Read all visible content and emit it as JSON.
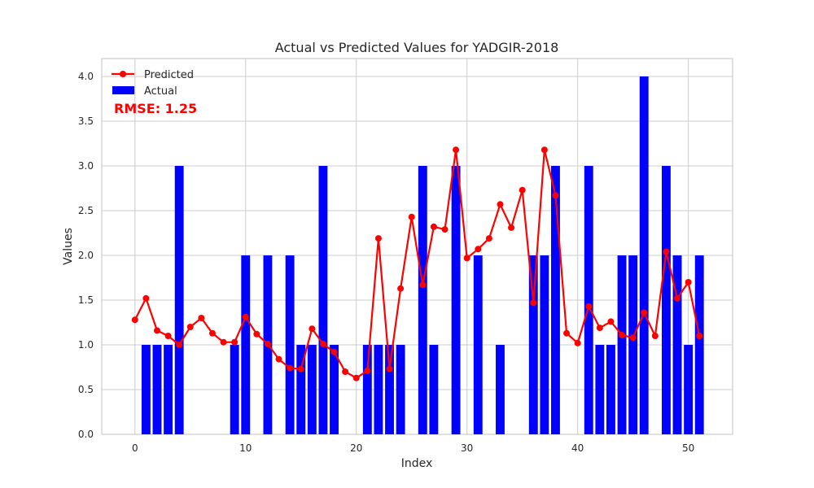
{
  "chart_data": {
    "type": "bar",
    "title": "Actual vs Predicted Values for YADGIR-2018",
    "xlabel": "Index",
    "ylabel": "Values",
    "xlim": [
      -3,
      54
    ],
    "ylim": [
      0,
      4.2
    ],
    "xticks": [
      0,
      10,
      20,
      30,
      40,
      50
    ],
    "yticks": [
      0.0,
      0.5,
      1.0,
      1.5,
      2.0,
      2.5,
      3.0,
      3.5,
      4.0
    ],
    "ytick_labels": [
      "0.0",
      "0.5",
      "1.0",
      "1.5",
      "2.0",
      "2.5",
      "3.0",
      "3.5",
      "4.0"
    ],
    "grid": true,
    "legend_position": "upper-left",
    "annotation": "RMSE: 1.25",
    "x": [
      0,
      1,
      2,
      3,
      4,
      5,
      6,
      7,
      8,
      9,
      10,
      11,
      12,
      13,
      14,
      15,
      16,
      17,
      18,
      19,
      20,
      21,
      22,
      23,
      24,
      25,
      26,
      27,
      28,
      29,
      30,
      31,
      32,
      33,
      34,
      35,
      36,
      37,
      38,
      39,
      40,
      41,
      42,
      43,
      44,
      45,
      46,
      47,
      48,
      49,
      50,
      51
    ],
    "series": [
      {
        "name": "Actual",
        "type": "bar",
        "color": "#0000ff",
        "values": [
          0,
          1,
          1,
          1,
          3,
          0,
          0,
          0,
          0,
          1,
          2,
          0,
          2,
          0,
          2,
          1,
          1,
          3,
          1,
          0,
          0,
          1,
          1,
          1,
          1,
          0,
          3,
          1,
          0,
          3,
          0,
          2,
          0,
          1,
          0,
          0,
          2,
          2,
          3,
          0,
          0,
          3,
          1,
          1,
          2,
          2,
          4,
          0,
          3,
          2,
          1,
          2
        ]
      },
      {
        "name": "Predicted",
        "type": "line",
        "color": "#ff0000",
        "values": [
          1.28,
          1.52,
          1.16,
          1.1,
          1.0,
          1.2,
          1.3,
          1.13,
          1.03,
          1.03,
          1.31,
          1.12,
          1.01,
          0.84,
          0.74,
          0.73,
          1.18,
          1.01,
          0.92,
          0.7,
          0.63,
          0.71,
          2.19,
          0.73,
          1.63,
          2.43,
          1.67,
          2.32,
          2.29,
          3.18,
          1.97,
          2.07,
          2.19,
          2.57,
          2.31,
          2.73,
          1.47,
          3.18,
          2.67,
          1.13,
          1.02,
          1.43,
          1.19,
          1.26,
          1.11,
          1.08,
          1.36,
          1.1,
          2.04,
          1.52,
          1.7,
          1.1
        ]
      }
    ]
  }
}
